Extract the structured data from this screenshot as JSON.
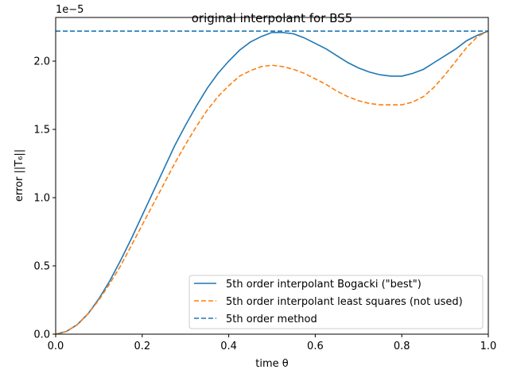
{
  "chart_data": {
    "type": "line",
    "title": "original interpolant for BS5",
    "xlabel": "time θ",
    "ylabel": "error ||T₆||",
    "y_offset_label": "1e−5",
    "xlim": [
      0.0,
      1.0
    ],
    "ylim": [
      0.0,
      2.32
    ],
    "y_scale_factor": 1e-05,
    "grid": false,
    "legend_placement": "lower-right",
    "x_ticks": [
      "0.0",
      "0.2",
      "0.4",
      "0.6",
      "0.8",
      "1.0"
    ],
    "x_tick_values": [
      0.0,
      0.2,
      0.4,
      0.6,
      0.8,
      1.0
    ],
    "y_ticks": [
      "0.0",
      "0.5",
      "1.0",
      "1.5",
      "2.0"
    ],
    "y_tick_values": [
      0.0,
      0.5,
      1.0,
      1.5,
      2.0
    ],
    "series": [
      {
        "name": "5th order interpolant Bogacki (\"best\")",
        "color": "#1f77b4",
        "style": "solid",
        "x": [
          0.0,
          0.025,
          0.05,
          0.075,
          0.1,
          0.125,
          0.15,
          0.175,
          0.2,
          0.225,
          0.25,
          0.275,
          0.3,
          0.325,
          0.35,
          0.375,
          0.4,
          0.425,
          0.45,
          0.475,
          0.5,
          0.525,
          0.55,
          0.575,
          0.6,
          0.625,
          0.65,
          0.675,
          0.7,
          0.725,
          0.75,
          0.775,
          0.8,
          0.825,
          0.85,
          0.875,
          0.9,
          0.925,
          0.95,
          0.975,
          1.0
        ],
        "values": [
          0.0,
          0.02,
          0.07,
          0.15,
          0.26,
          0.39,
          0.54,
          0.7,
          0.87,
          1.04,
          1.21,
          1.38,
          1.53,
          1.67,
          1.8,
          1.91,
          2.0,
          2.08,
          2.14,
          2.18,
          2.21,
          2.21,
          2.2,
          2.17,
          2.13,
          2.09,
          2.04,
          1.99,
          1.95,
          1.92,
          1.9,
          1.89,
          1.89,
          1.91,
          1.94,
          1.99,
          2.04,
          2.09,
          2.15,
          2.19,
          2.22
        ]
      },
      {
        "name": "5th order interpolant least squares (not used)",
        "color": "#ff7f0e",
        "style": "dashed",
        "x": [
          0.0,
          0.025,
          0.05,
          0.075,
          0.1,
          0.125,
          0.15,
          0.175,
          0.2,
          0.225,
          0.25,
          0.275,
          0.3,
          0.325,
          0.35,
          0.375,
          0.4,
          0.425,
          0.45,
          0.475,
          0.5,
          0.525,
          0.55,
          0.575,
          0.6,
          0.625,
          0.65,
          0.675,
          0.7,
          0.725,
          0.75,
          0.775,
          0.8,
          0.825,
          0.85,
          0.875,
          0.9,
          0.925,
          0.95,
          0.975,
          1.0
        ],
        "values": [
          0.0,
          0.02,
          0.07,
          0.15,
          0.25,
          0.37,
          0.5,
          0.65,
          0.8,
          0.95,
          1.1,
          1.25,
          1.39,
          1.52,
          1.64,
          1.74,
          1.82,
          1.89,
          1.93,
          1.96,
          1.97,
          1.96,
          1.94,
          1.91,
          1.87,
          1.83,
          1.78,
          1.74,
          1.71,
          1.69,
          1.68,
          1.68,
          1.68,
          1.7,
          1.74,
          1.81,
          1.9,
          2.0,
          2.1,
          2.18,
          2.22
        ]
      },
      {
        "name": "5th order method",
        "color": "#1f77b4",
        "style": "dashed",
        "x": [
          0.0,
          1.0
        ],
        "values": [
          2.22,
          2.22
        ]
      }
    ]
  }
}
